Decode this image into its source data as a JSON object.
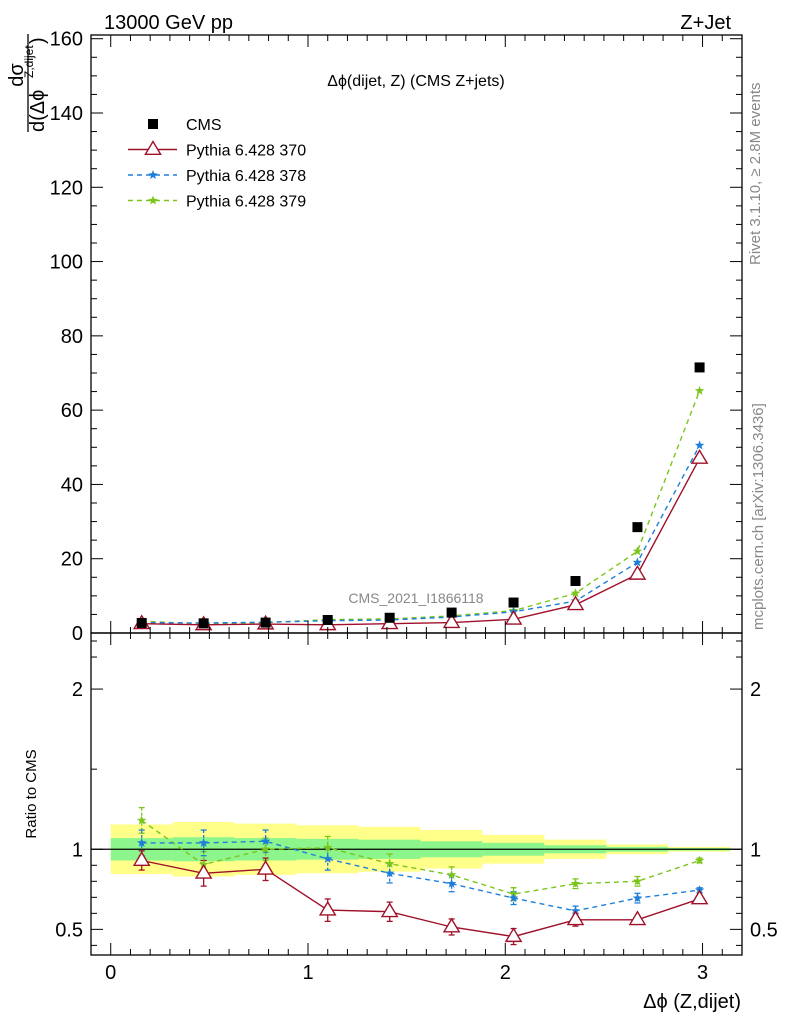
{
  "header": {
    "left": "13000 GeV pp",
    "right": "Z+Jet"
  },
  "side_labels": {
    "rivet": "Rivet 3.1.10, ≥ 2.8M events",
    "mcplots": "mcplots.cern.ch [arXiv:1306.3436]"
  },
  "watermark": "CMS_2021_I1866118",
  "chart_data": [
    {
      "type": "scatter",
      "title": "Δϕ(dijet, Z) (CMS Z+jets)",
      "ylabel_num": "dσ",
      "ylabel_den": "d(Δϕ",
      "ylabel_sup": "Z,dijet",
      "ylabel_tail": ")",
      "xlim": [
        -0.1,
        3.2
      ],
      "ylim": [
        0,
        161
      ],
      "yticks": [
        0,
        20,
        40,
        60,
        80,
        100,
        120,
        140,
        160
      ],
      "x": [
        0.157,
        0.471,
        0.785,
        1.1,
        1.414,
        1.728,
        2.042,
        2.356,
        2.67,
        2.985
      ],
      "series": [
        {
          "name": "CMS",
          "color": "#000000",
          "values": [
            2.7,
            2.6,
            2.8,
            3.5,
            4.1,
            5.5,
            8.2,
            14.0,
            28.5,
            71.5
          ]
        },
        {
          "name": "Pythia 6.428 370",
          "color": "#a0102a",
          "values": [
            2.5,
            2.2,
            2.4,
            2.2,
            2.5,
            2.8,
            3.7,
            7.6,
            15.8,
            47.0
          ]
        },
        {
          "name": "Pythia 6.428 378",
          "color": "#1e7fd8",
          "values": [
            2.8,
            2.7,
            2.9,
            3.3,
            3.5,
            4.3,
            5.7,
            8.6,
            19.0,
            50.5
          ]
        },
        {
          "name": "Pythia 6.428 379",
          "color": "#7cc51a",
          "values": [
            3.2,
            2.4,
            2.8,
            3.6,
            3.8,
            4.6,
            6.0,
            10.7,
            22.0,
            65.2
          ]
        }
      ]
    },
    {
      "type": "scatter",
      "ylabel": "Ratio to CMS",
      "xlabel": "Δϕ (Z,dijet)",
      "xlim": [
        -0.1,
        3.2
      ],
      "ylim": [
        0.34,
        2.35
      ],
      "yticks": [
        0.5,
        1,
        2
      ],
      "xticks": [
        0,
        1,
        2,
        3
      ],
      "x": [
        0.157,
        0.471,
        0.785,
        1.1,
        1.414,
        1.728,
        2.042,
        2.356,
        2.67,
        2.985
      ],
      "bands": {
        "edges": [
          0,
          0.314,
          0.628,
          0.942,
          1.256,
          1.57,
          1.884,
          2.198,
          2.512,
          2.826,
          3.14
        ],
        "yellow": [
          0.155,
          0.17,
          0.16,
          0.15,
          0.14,
          0.12,
          0.09,
          0.06,
          0.03,
          0.015
        ],
        "green": [
          0.07,
          0.075,
          0.07,
          0.065,
          0.06,
          0.05,
          0.04,
          0.025,
          0.015,
          0.008
        ]
      },
      "series": [
        {
          "name": "Pythia 6.428 370",
          "color": "#a0102a",
          "values": [
            0.93,
            0.85,
            0.875,
            0.62,
            0.61,
            0.515,
            0.455,
            0.56,
            0.56,
            0.69
          ],
          "err": [
            0.06,
            0.08,
            0.07,
            0.07,
            0.06,
            0.05,
            0.05,
            0.04,
            0.02,
            0.02
          ]
        },
        {
          "name": "Pythia 6.428 378",
          "color": "#1e7fd8",
          "values": [
            1.04,
            1.04,
            1.05,
            0.94,
            0.85,
            0.785,
            0.695,
            0.615,
            0.695,
            0.745
          ],
          "err": [
            0.08,
            0.08,
            0.07,
            0.07,
            0.06,
            0.05,
            0.04,
            0.03,
            0.03,
            0.015
          ]
        },
        {
          "name": "Pythia 6.428 379",
          "color": "#7cc51a",
          "values": [
            1.18,
            0.905,
            1.0,
            1.01,
            0.91,
            0.84,
            0.72,
            0.785,
            0.8,
            0.93
          ],
          "err": [
            0.08,
            0.08,
            0.07,
            0.07,
            0.06,
            0.05,
            0.04,
            0.03,
            0.03,
            0.015
          ]
        }
      ]
    }
  ]
}
